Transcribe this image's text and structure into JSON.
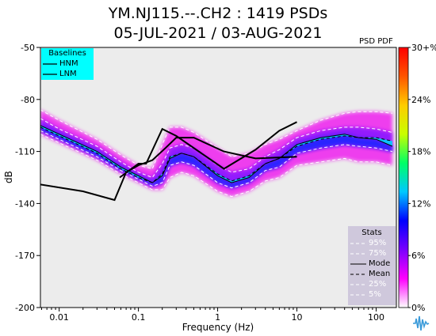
{
  "title": {
    "line1": "YM.NJ115.--.CH2 : 1419 PSDs",
    "line2": "05-JUL-2021 / 03-AUG-2021"
  },
  "colorbar_label": "PSD PDF",
  "colors": {
    "baseline_legend_bg": "#00ffff",
    "stats_legend_bg": "#cfc8dc",
    "plot_bg": "#ececec",
    "model_line": "#000000",
    "percentile_line": "#ffffff"
  },
  "legend_baselines": {
    "title": "Baselines",
    "items": [
      "HNM",
      "LNM"
    ]
  },
  "legend_stats": {
    "title": "Stats",
    "items": [
      {
        "label": "95%",
        "style": "dashed-white"
      },
      {
        "label": "75%",
        "style": "dashed-white"
      },
      {
        "label": "Mode",
        "style": "solid-black"
      },
      {
        "label": "Mean",
        "style": "dashed-black"
      },
      {
        "label": "25%",
        "style": "dashed-white"
      },
      {
        "label": "5%",
        "style": "dashed-white"
      }
    ]
  },
  "logo_icon": "seismic-waveform-icon",
  "chart_data": {
    "type": "line",
    "xlabel": "Frequency (Hz)",
    "ylabel": "dB",
    "xscale": "log",
    "xlim": [
      0.0058,
      180
    ],
    "ylim": [
      -200,
      -50
    ],
    "xticks": [
      {
        "value": 0.01,
        "label": "0.01"
      },
      {
        "value": 0.1,
        "label": "0.1"
      },
      {
        "value": 1,
        "label": "1"
      },
      {
        "value": 10,
        "label": "10"
      },
      {
        "value": 100,
        "label": "100"
      }
    ],
    "yticks": [
      -50,
      -80,
      -110,
      -140,
      -170,
      -200
    ],
    "colorbar": {
      "min": 0,
      "max": 30,
      "ticks": [
        "0%",
        "6%",
        "12%",
        "18%",
        "24%",
        "30+%"
      ],
      "colors": [
        "#ffffff",
        "#ff00ff",
        "#7a00ff",
        "#0000ff",
        "#00c8ff",
        "#00ff66",
        "#c8ff00",
        "#ffcc00",
        "#ff5500",
        "#ff0000"
      ]
    },
    "series": [
      {
        "name": "HNM",
        "x": [
          0.058,
          0.1,
          0.125,
          0.2,
          0.3,
          1.2,
          3,
          6,
          10
        ],
        "y": [
          -125,
          -117,
          -117,
          -97,
          -101,
          -120,
          -109,
          -98,
          -93
        ]
      },
      {
        "name": "LNM",
        "x": [
          0.0058,
          0.02,
          0.05,
          0.07,
          0.1,
          0.15,
          0.22,
          0.3,
          0.5,
          1.2,
          3,
          10
        ],
        "y": [
          -129,
          -133,
          -138,
          -122,
          -118,
          -115,
          -108,
          -102,
          -102,
          -110,
          -114,
          -113
        ]
      },
      {
        "name": "Mode",
        "x": [
          0.0058,
          0.01,
          0.03,
          0.06,
          0.1,
          0.15,
          0.2,
          0.25,
          0.35,
          0.5,
          1,
          1.5,
          2.5,
          4,
          6,
          10,
          20,
          40,
          60,
          100,
          160
        ],
        "y": [
          -95,
          -100,
          -110,
          -119,
          -124,
          -128,
          -124,
          -114,
          -111,
          -113,
          -124,
          -128,
          -125,
          -117,
          -114,
          -106,
          -102,
          -100,
          -102,
          -103,
          -107
        ]
      },
      {
        "name": "Mean",
        "x": [
          0.0058,
          0.01,
          0.03,
          0.06,
          0.1,
          0.15,
          0.2,
          0.25,
          0.35,
          0.5,
          1,
          1.5,
          2.5,
          4,
          6,
          10,
          20,
          40,
          60,
          100,
          160
        ],
        "y": [
          -96,
          -101,
          -111,
          -120,
          -125,
          -128,
          -123,
          -113,
          -111,
          -113,
          -123,
          -127,
          -124,
          -117,
          -114,
          -107,
          -103,
          -101,
          -102,
          -102,
          -104
        ]
      },
      {
        "name": "95%",
        "x": [
          0.0058,
          0.01,
          0.03,
          0.06,
          0.1,
          0.15,
          0.2,
          0.25,
          0.35,
          0.5,
          1,
          1.5,
          2.5,
          4,
          6,
          10,
          20,
          40,
          60,
          100,
          160
        ],
        "y": [
          -86,
          -92,
          -103,
          -112,
          -118,
          -120,
          -106,
          -96,
          -96,
          -99,
          -108,
          -113,
          -111,
          -106,
          -103,
          -98,
          -92,
          -88,
          -87,
          -87,
          -88
        ]
      },
      {
        "name": "75%",
        "x": [
          0.0058,
          0.01,
          0.03,
          0.06,
          0.1,
          0.15,
          0.2,
          0.25,
          0.35,
          0.5,
          1,
          1.5,
          2.5,
          4,
          6,
          10,
          20,
          40,
          60,
          100,
          160
        ],
        "y": [
          -91,
          -97,
          -107,
          -116,
          -122,
          -125,
          -117,
          -108,
          -106,
          -108,
          -118,
          -122,
          -120,
          -113,
          -109,
          -102,
          -98,
          -96,
          -96,
          -97,
          -99
        ]
      },
      {
        "name": "25%",
        "x": [
          0.0058,
          0.01,
          0.03,
          0.06,
          0.1,
          0.15,
          0.2,
          0.25,
          0.35,
          0.5,
          1,
          1.5,
          2.5,
          4,
          6,
          10,
          20,
          40,
          60,
          100,
          160
        ],
        "y": [
          -98,
          -103,
          -113,
          -121,
          -126,
          -130,
          -128,
          -118,
          -116,
          -118,
          -128,
          -131,
          -128,
          -121,
          -119,
          -111,
          -108,
          -106,
          -107,
          -108,
          -110
        ]
      },
      {
        "name": "5%",
        "x": [
          0.0058,
          0.01,
          0.03,
          0.06,
          0.1,
          0.15,
          0.2,
          0.25,
          0.35,
          0.5,
          1,
          1.5,
          2.5,
          4,
          6,
          10,
          20,
          40,
          60,
          100,
          160
        ],
        "y": [
          -100,
          -105,
          -115,
          -123,
          -128,
          -132,
          -132,
          -125,
          -122,
          -124,
          -133,
          -136,
          -133,
          -127,
          -125,
          -118,
          -116,
          -114,
          -116,
          -116,
          -118
        ]
      }
    ]
  }
}
